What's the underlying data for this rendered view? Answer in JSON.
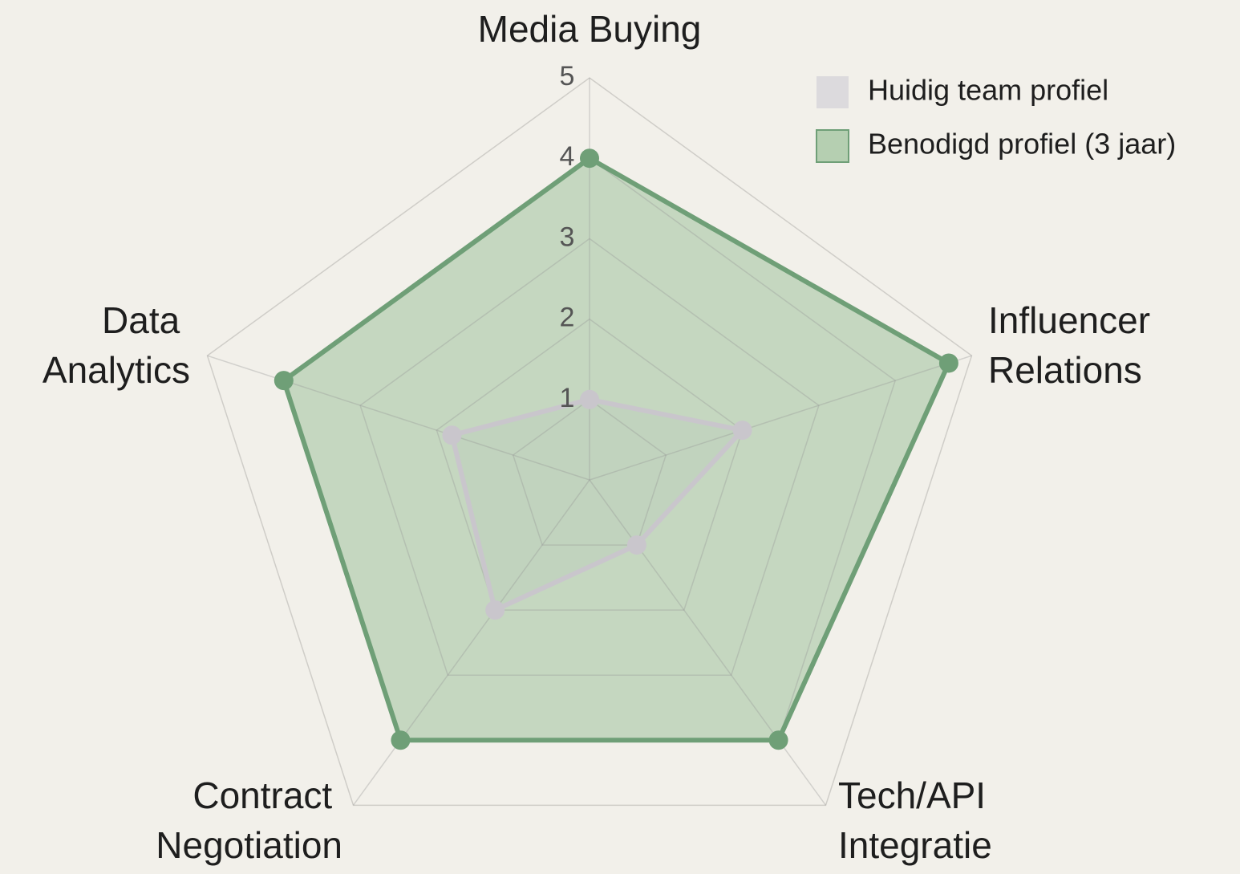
{
  "chart_data": {
    "type": "radar",
    "categories": [
      "Media Buying",
      "Influencer Relations",
      "Tech/API Integratie",
      "Contract Negotiation",
      "Data Analytics"
    ],
    "rlim": [
      0,
      5
    ],
    "rticks": [
      1,
      2,
      3,
      4,
      5
    ],
    "grid": true,
    "legend": "upper right",
    "series": [
      {
        "name": "Huidig team profiel",
        "color": "#c9c6cc",
        "fill": "#dcdadd",
        "values": [
          1,
          2,
          1,
          2,
          1.8
        ]
      },
      {
        "name": "Benodigd profiel (3 jaar)",
        "color": "#6f9f77",
        "fill": "#b5cfb1",
        "values": [
          4,
          4.7,
          4,
          4,
          4
        ]
      }
    ]
  }
}
